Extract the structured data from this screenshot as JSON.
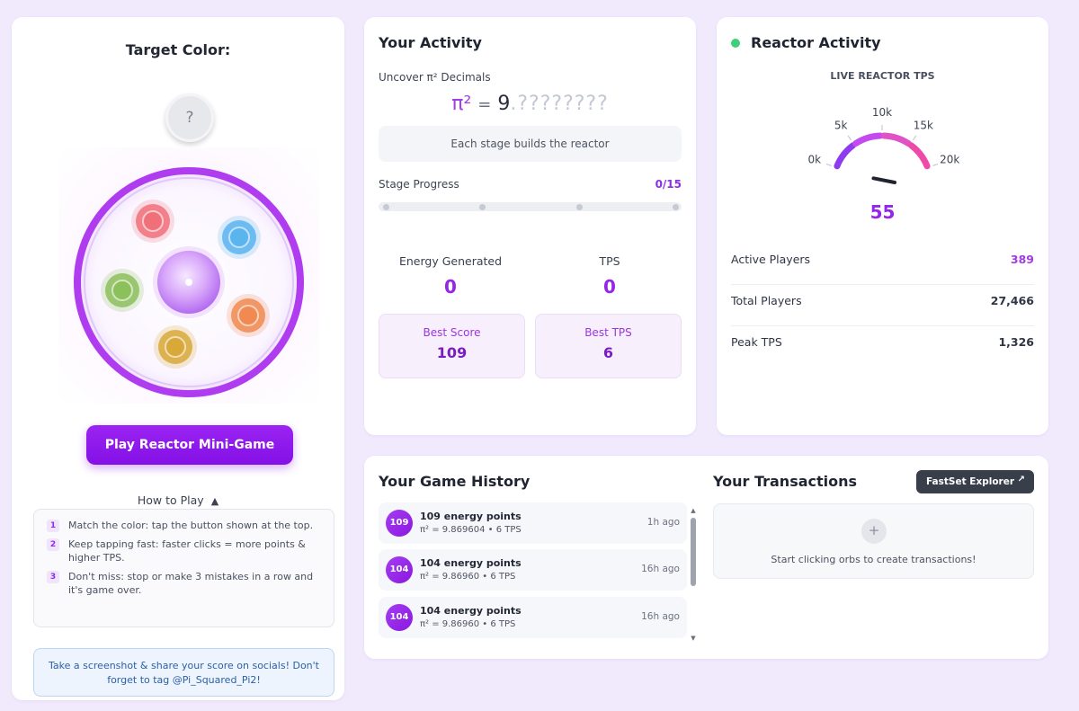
{
  "left": {
    "target_title": "Target Color:",
    "target_swatch_text": "?",
    "play_button": "Play Reactor Mini-Game",
    "how_to_play": "How to Play",
    "rules": [
      {
        "num": "1",
        "text": "Match the color: tap the button shown at the top."
      },
      {
        "num": "2",
        "text": "Keep tapping fast: faster clicks = more points & higher TPS."
      },
      {
        "num": "3",
        "text": "Don't miss: stop or make 3 mistakes in a row and it's game over."
      }
    ],
    "share_text": "Take a screenshot & share your score on socials! Don't forget to tag @Pi_Squared_Pi2!",
    "orb_colors": [
      "#f0707a",
      "#5ab4ee",
      "#8cc05a",
      "#f08a50",
      "#d8a838"
    ]
  },
  "activity": {
    "title": "Your Activity",
    "pi_label": "Uncover π² Decimals",
    "pi_symbol": "π²",
    "pi_equals": "=",
    "pi_integer": "9",
    "pi_hidden": ".????????",
    "stage_message": "Each stage builds the reactor",
    "stage_label": "Stage Progress",
    "stage_count": "0/15",
    "stage_progress": 0,
    "energy_label": "Energy Generated",
    "energy_value": "0",
    "tps_label": "TPS",
    "tps_value": "0",
    "best_score_label": "Best Score",
    "best_score_value": "109",
    "best_tps_label": "Best TPS",
    "best_tps_value": "6"
  },
  "reactor": {
    "title": "Reactor Activity",
    "tps_caption": "LIVE REACTOR TPS",
    "gauge_ticks": [
      "0k",
      "5k",
      "10k",
      "15k",
      "20k"
    ],
    "gauge_value": "55",
    "gauge_max": 20000,
    "stats": [
      {
        "label": "Active Players",
        "value": "389",
        "color": "#a23be0"
      },
      {
        "label": "Total Players",
        "value": "27,466",
        "color": "#1f2430"
      },
      {
        "label": "Peak TPS",
        "value": "1,326",
        "color": "#1f2430"
      }
    ],
    "live_color": "#3fcf7a"
  },
  "history": {
    "title": "Your Game History",
    "items": [
      {
        "badge": "109",
        "title": "109 energy points",
        "sub": "π² = 9.869604 • 6 TPS",
        "time": "1h ago"
      },
      {
        "badge": "104",
        "title": "104 energy points",
        "sub": "π² = 9.86960 • 6 TPS",
        "time": "16h ago"
      },
      {
        "badge": "104",
        "title": "104 energy points",
        "sub": "π² = 9.86960 • 6 TPS",
        "time": "16h ago"
      }
    ]
  },
  "transactions": {
    "title": "Your Transactions",
    "explorer_button": "FastSet Explorer",
    "plus": "+",
    "empty_text": "Start clicking orbs to create transactions!"
  }
}
